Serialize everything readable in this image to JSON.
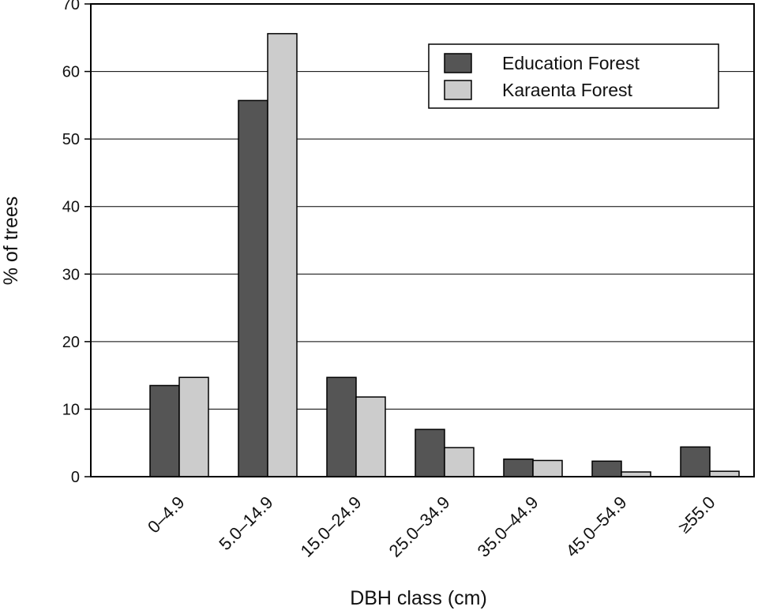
{
  "chart_data": {
    "type": "bar",
    "categories": [
      "0–4.9",
      "5.0–14.9",
      "15.0–24.9",
      "25.0–34.9",
      "35.0–44.9",
      "45.0–54.9",
      "≥55.0"
    ],
    "series": [
      {
        "name": "Education Forest",
        "color": "#555555",
        "values": [
          13.5,
          55.7,
          14.7,
          7.0,
          2.6,
          2.3,
          4.4
        ]
      },
      {
        "name": "Karaenta Forest",
        "color": "#cccccc",
        "values": [
          14.7,
          65.6,
          11.8,
          4.3,
          2.4,
          0.7,
          0.8
        ]
      }
    ],
    "xlabel": "DBH class (cm)",
    "ylabel": "% of trees",
    "ylim": [
      0,
      70
    ],
    "yticks": [
      "0",
      "10",
      "20",
      "30",
      "40",
      "50",
      "60",
      "70"
    ],
    "grid": true,
    "legend_position": "top-right"
  }
}
